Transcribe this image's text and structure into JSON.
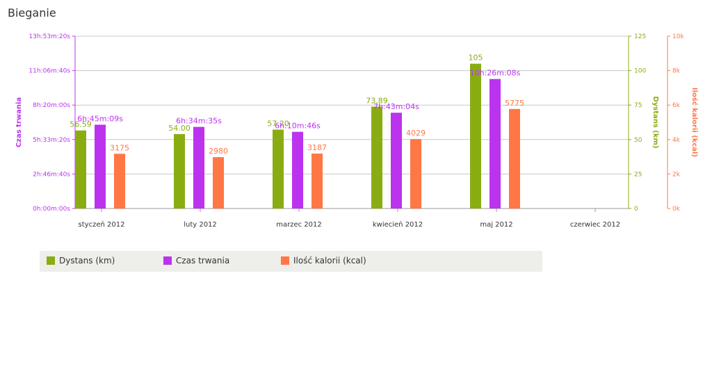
{
  "title": "Bieganie",
  "colors": {
    "distance": "#8aac13",
    "duration": "#bb33ee",
    "calories": "#ff7744"
  },
  "chart_data": {
    "type": "bar",
    "title": "Bieganie",
    "categories": [
      "styczeń 2012",
      "luty 2012",
      "marzec 2012",
      "kwiecień 2012",
      "maj 2012",
      "czerwiec 2012"
    ],
    "series": [
      {
        "name": "Dystans (km)",
        "axis": "right-inner",
        "values": [
          56.59,
          54.0,
          57.2,
          73.89,
          105,
          null
        ],
        "labels": [
          "56.59",
          "54.00",
          "57.20",
          "73.89",
          "105",
          ""
        ]
      },
      {
        "name": "Czas trwania",
        "axis": "left",
        "values_seconds": [
          24309,
          23675,
          22246,
          27784,
          37568,
          null
        ],
        "labels": [
          "6h:45m:09s",
          "6h:34m:35s",
          "6h:10m:46s",
          "7h:43m:04s",
          "10h:26m:08s",
          ""
        ]
      },
      {
        "name": "Ilość kalorii (kcal)",
        "axis": "right-outer",
        "values": [
          3175,
          2980,
          3187,
          4029,
          5775,
          null
        ],
        "labels": [
          "3175",
          "2980",
          "3187",
          "4029",
          "5775",
          ""
        ]
      }
    ],
    "axes": {
      "left": {
        "label": "Czas trwania",
        "min": 0,
        "max": 50000,
        "ticks": [
          "0h:00m:00s",
          "2h:46m:40s",
          "5h:33m:20s",
          "8h:20m:00s",
          "11h:06m:40s",
          "13h:53m:20s"
        ]
      },
      "right_inner": {
        "label": "Dystans (km)",
        "min": 0,
        "max": 125,
        "ticks": [
          "0",
          "25",
          "50",
          "75",
          "100",
          "125"
        ]
      },
      "right_outer": {
        "label": "Ilość kalorii (kcal)",
        "min": 0,
        "max": 10000,
        "ticks": [
          "0k",
          "2k",
          "4k",
          "6k",
          "8k",
          "10k"
        ]
      }
    },
    "grid": true,
    "legend_position": "bottom"
  }
}
